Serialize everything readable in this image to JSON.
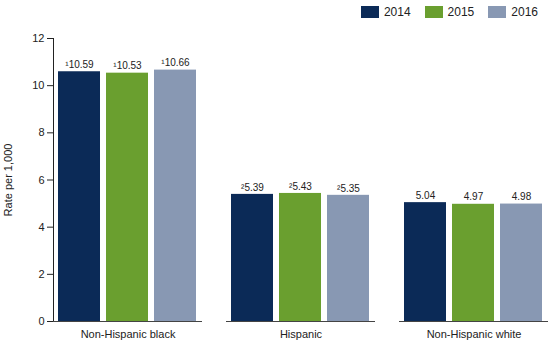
{
  "chart_data": {
    "type": "bar",
    "categories": [
      "Non-Hispanic black",
      "Hispanic",
      "Non-Hispanic white"
    ],
    "series": [
      {
        "name": "2014",
        "color": "#0b2a57",
        "values": [
          10.59,
          5.39,
          5.04
        ],
        "value_labels": [
          "¹10.59",
          "²5.39",
          "5.04"
        ]
      },
      {
        "name": "2015",
        "color": "#6a9f2f",
        "values": [
          10.53,
          5.43,
          4.97
        ],
        "value_labels": [
          "¹10.53",
          "²5.43",
          "4.97"
        ]
      },
      {
        "name": "2016",
        "color": "#8898b3",
        "values": [
          10.66,
          5.35,
          4.98
        ],
        "value_labels": [
          "¹10.66",
          "²5.35",
          "4.98"
        ]
      }
    ],
    "y_label": "Rate per 1,000",
    "ylim": [
      0,
      12
    ],
    "yticks": [
      0,
      2,
      4,
      6,
      8,
      10,
      12
    ],
    "legend": "top-right",
    "data_labels": true,
    "grid": false
  }
}
